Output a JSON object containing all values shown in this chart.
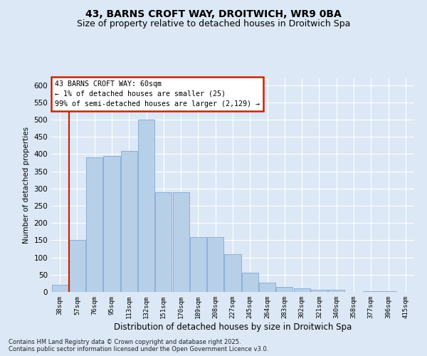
{
  "title1": "43, BARNS CROFT WAY, DROITWICH, WR9 0BA",
  "title2": "Size of property relative to detached houses in Droitwich Spa",
  "xlabel": "Distribution of detached houses by size in Droitwich Spa",
  "ylabel": "Number of detached properties",
  "footnote": "Contains HM Land Registry data © Crown copyright and database right 2025.\nContains public sector information licensed under the Open Government Licence v3.0.",
  "bar_labels": [
    "38sqm",
    "57sqm",
    "76sqm",
    "95sqm",
    "113sqm",
    "132sqm",
    "151sqm",
    "170sqm",
    "189sqm",
    "208sqm",
    "227sqm",
    "245sqm",
    "264sqm",
    "283sqm",
    "302sqm",
    "321sqm",
    "340sqm",
    "358sqm",
    "377sqm",
    "396sqm",
    "415sqm"
  ],
  "bar_values": [
    20,
    150,
    390,
    395,
    410,
    500,
    290,
    290,
    160,
    160,
    110,
    55,
    27,
    15,
    10,
    6,
    7,
    0,
    2,
    3,
    1
  ],
  "bar_color": "#b8cfe8",
  "bar_edge_color": "#8aafd4",
  "highlight_color": "#cc2200",
  "annotation_text": "43 BARNS CROFT WAY: 60sqm\n← 1% of detached houses are smaller (25)\n99% of semi-detached houses are larger (2,129) →",
  "annotation_box_color": "#cc2200",
  "ylim": [
    0,
    620
  ],
  "yticks": [
    0,
    50,
    100,
    150,
    200,
    250,
    300,
    350,
    400,
    450,
    500,
    550,
    600
  ],
  "bg_color": "#dce8f5",
  "grid_color": "#ffffff",
  "title1_fontsize": 10,
  "title2_fontsize": 9
}
